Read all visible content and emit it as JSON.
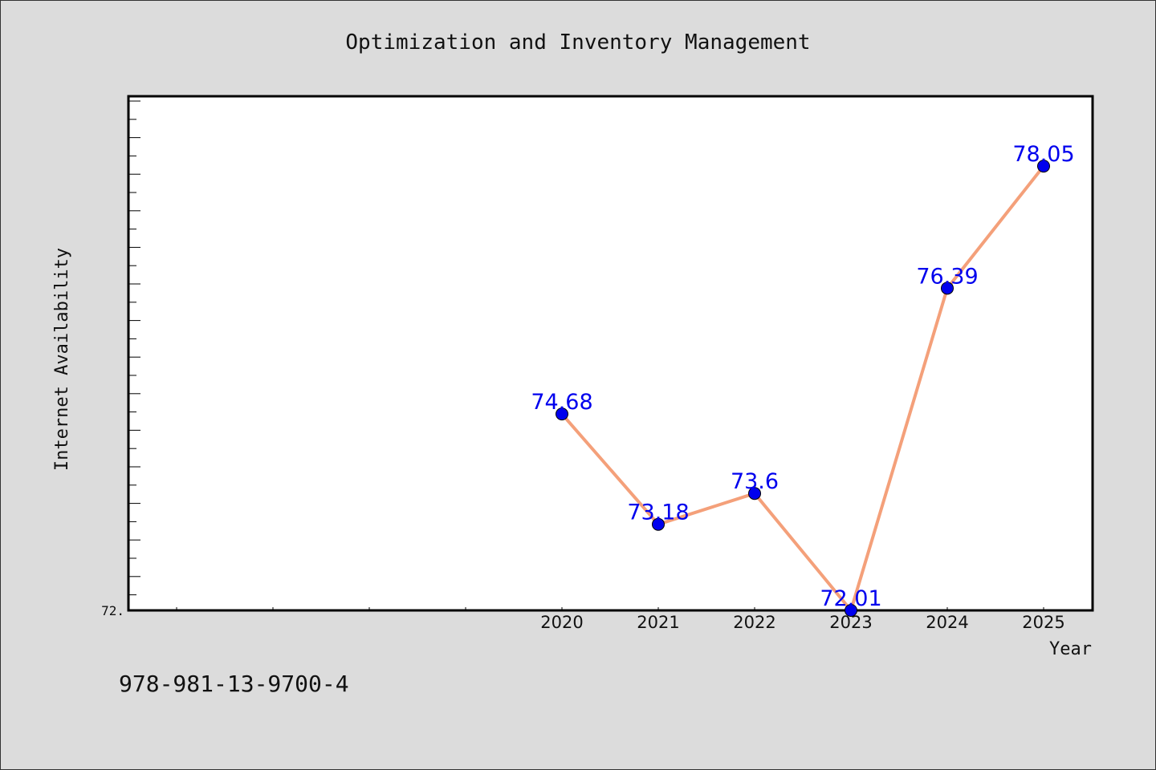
{
  "chart_data": {
    "type": "line",
    "title": "Optimization and Inventory Management",
    "xlabel": "Year",
    "ylabel": "Internet Availability",
    "categories": [
      "2020",
      "2021",
      "2022",
      "2023",
      "2024",
      "2025"
    ],
    "series": [
      {
        "values": [
          74.68,
          73.18,
          73.6,
          72.01,
          76.39,
          78.05
        ],
        "labels": [
          "74.68",
          "73.18",
          "73.6",
          "72.01",
          "76.39",
          "78.05"
        ],
        "color": "#f4a07a",
        "marker_color": "#0000ee"
      }
    ],
    "ytick_labels": [
      "72."
    ],
    "ylim": [
      72.01,
      79.0
    ],
    "grid": false,
    "legend": "none"
  },
  "footer": {
    "isbn": "978-981-13-9700-4"
  },
  "colors": {
    "background": "#dcdcdc",
    "plot_background": "#ffffff",
    "line": "#f4a07a",
    "marker": "#0000ee",
    "data_label": "#0000ee"
  }
}
